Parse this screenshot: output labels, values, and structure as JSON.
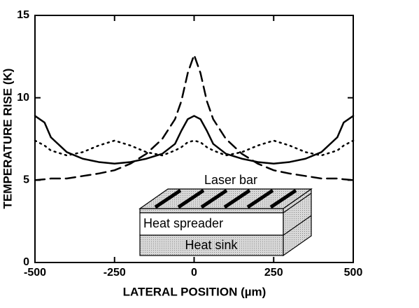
{
  "chart_data": {
    "type": "line",
    "x_label": "LATERAL POSITION (µm)",
    "y_label": "TEMPERATURE RISE (K)",
    "x": [
      -500,
      -470,
      -450,
      -400,
      -350,
      -300,
      -250,
      -200,
      -150,
      -100,
      -60,
      -40,
      -20,
      0,
      20,
      40,
      60,
      100,
      150,
      200,
      250,
      300,
      350,
      400,
      450,
      470,
      500
    ],
    "series": [
      {
        "color": "#000000",
        "dash": "solid",
        "values": [
          8.9,
          8.5,
          7.6,
          6.7,
          6.3,
          6.1,
          6.0,
          6.1,
          6.3,
          6.6,
          7.2,
          8.0,
          8.7,
          8.9,
          8.7,
          8.0,
          7.2,
          6.6,
          6.3,
          6.1,
          6.0,
          6.1,
          6.3,
          6.7,
          7.6,
          8.5,
          8.9
        ]
      },
      {
        "color": "#000000",
        "dash": "dashed",
        "values": [
          5.0,
          5.05,
          5.1,
          5.1,
          5.25,
          5.4,
          5.6,
          6.0,
          6.6,
          7.5,
          8.7,
          9.8,
          11.5,
          12.6,
          11.5,
          9.8,
          8.7,
          7.5,
          6.6,
          6.0,
          5.6,
          5.4,
          5.25,
          5.1,
          5.1,
          5.05,
          5.0
        ]
      },
      {
        "color": "#000000",
        "dash": "dotted",
        "values": [
          7.4,
          7.1,
          6.8,
          6.5,
          6.7,
          7.1,
          7.4,
          7.1,
          6.7,
          6.5,
          6.8,
          7.0,
          7.3,
          7.4,
          7.3,
          7.0,
          6.8,
          6.5,
          6.7,
          7.1,
          7.4,
          7.1,
          6.7,
          6.5,
          6.8,
          7.1,
          7.4
        ]
      }
    ],
    "xlim": [
      -500,
      500
    ],
    "xticks": [
      -500,
      -250,
      0,
      250,
      500
    ],
    "ylim": [
      0,
      15
    ],
    "yticks": [
      0,
      5,
      10,
      15
    ],
    "annotations": [
      "Laser bar",
      "Heat spreader",
      "Heat sink"
    ]
  }
}
